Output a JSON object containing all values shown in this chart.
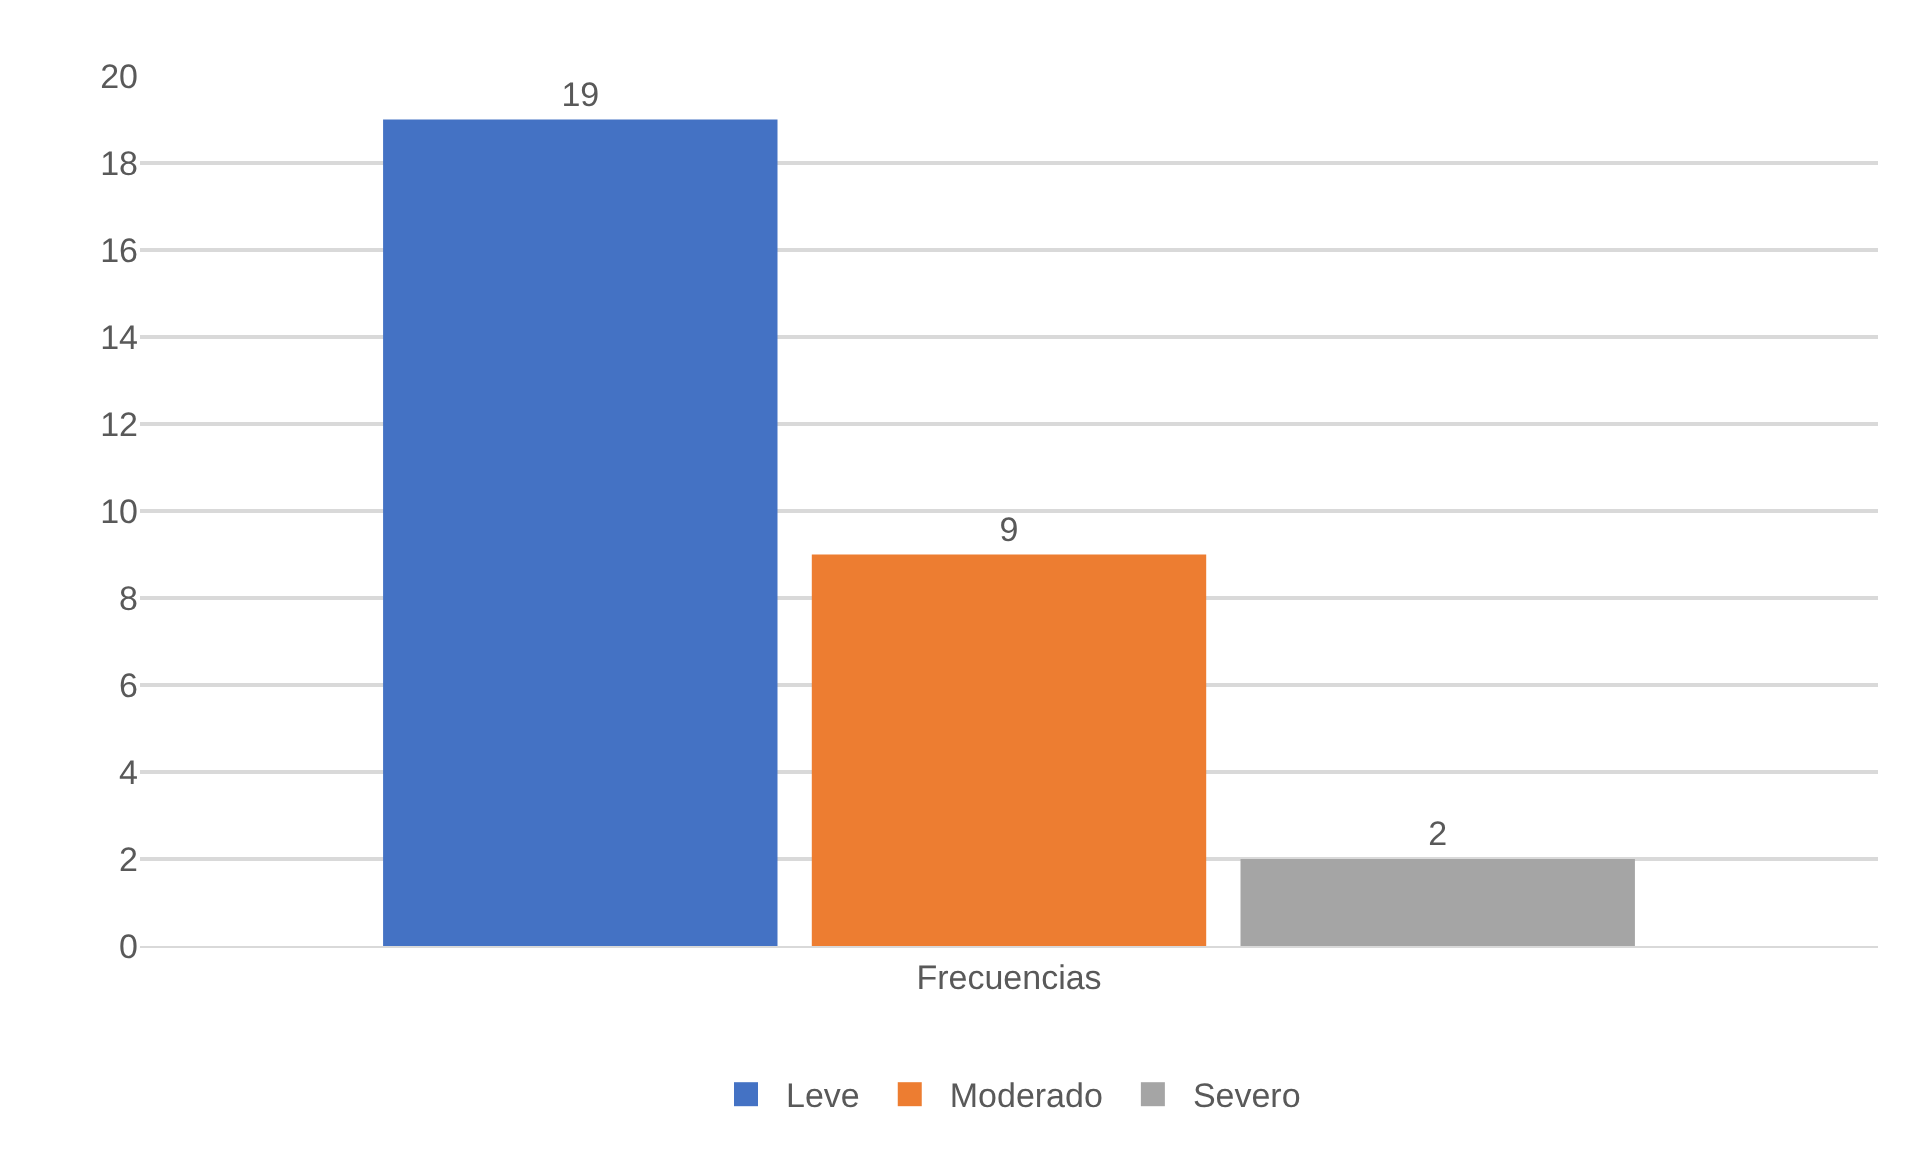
{
  "chart_data": {
    "type": "bar",
    "categories": [
      "Frecuencias"
    ],
    "series": [
      {
        "name": "Leve",
        "color": "#4472c4",
        "values": [
          19
        ]
      },
      {
        "name": "Moderado",
        "color": "#ed7d31",
        "values": [
          9
        ]
      },
      {
        "name": "Severo",
        "color": "#a5a5a5",
        "values": [
          2
        ]
      }
    ],
    "ylim": [
      0,
      20
    ],
    "yticks": [
      0,
      2,
      4,
      6,
      8,
      10,
      12,
      14,
      16,
      18,
      20
    ],
    "grid": "y",
    "legend": "bottom",
    "data_labels": true
  }
}
